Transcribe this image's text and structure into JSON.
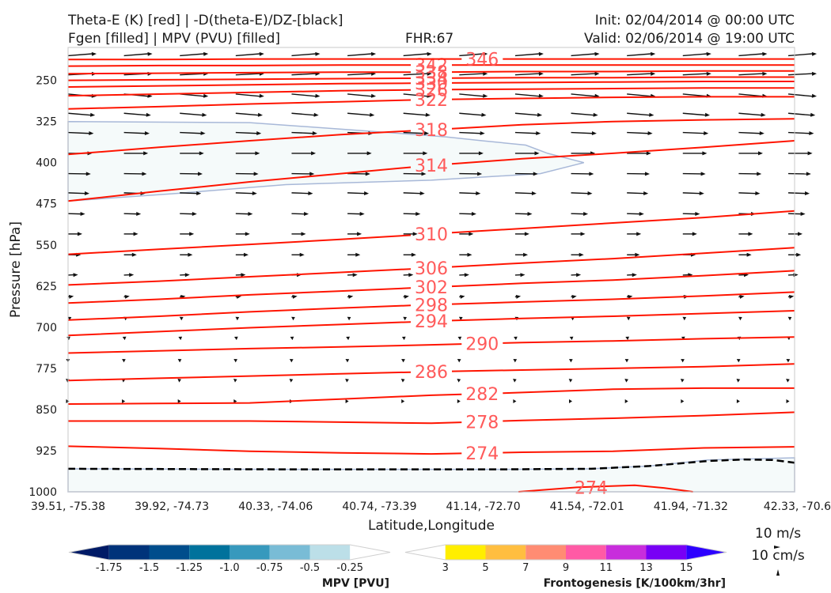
{
  "header": {
    "line1_left": "Theta-E (K) [red] | -D(theta-E)/DZ-[black]",
    "line2_left": "Fgen [filled] | MPV (PVU) [filled]",
    "fhr": "FHR:67",
    "init": "Init: 02/04/2014 @ 00:00 UTC",
    "valid": "Valid: 02/06/2014 @ 19:00 UTC"
  },
  "chart_data": {
    "type": "cross-section",
    "xlabel": "Latitude,Longitude",
    "ylabel": "Pressure [hPa]",
    "x_ticks": [
      "39.51, -75.38",
      "39.92, -74.73",
      "40.33, -74.06",
      "40.74, -73.39",
      "41.14, -72.70",
      "41.54, -72.01",
      "41.94, -71.32",
      "42.33, -70.6"
    ],
    "y_ticks": [
      "250",
      "325",
      "400",
      "475",
      "550",
      "625",
      "700",
      "775",
      "850",
      "925",
      "1000"
    ],
    "ylim": [
      1000,
      190
    ],
    "theta_e_contours": [
      {
        "label": "274",
        "y": [
          917,
          921,
          926,
          929,
          931,
          928,
          926,
          920,
          918
        ]
      },
      {
        "label": "278",
        "y": [
          871,
          871,
          871,
          873,
          875,
          870,
          866,
          861,
          855
        ]
      },
      {
        "label": "282",
        "y": [
          840,
          839,
          838,
          831,
          824,
          819,
          813,
          811,
          811
        ]
      },
      {
        "label": "286",
        "y": [
          797,
          793,
          789,
          785,
          781,
          778,
          775,
          772,
          767
        ]
      },
      {
        "label": "290",
        "y": [
          747,
          743,
          739,
          736,
          732,
          728,
          725,
          721,
          718
        ]
      },
      {
        "label": "294",
        "y": [
          715,
          708,
          701,
          695,
          689,
          684,
          680,
          675,
          670
        ]
      },
      {
        "label": "298",
        "y": [
          687,
          680,
          672,
          665,
          659,
          654,
          649,
          643,
          636
        ]
      },
      {
        "label": "302",
        "y": [
          656,
          649,
          641,
          634,
          627,
          620,
          614,
          606,
          597
        ]
      },
      {
        "label": "306",
        "y": [
          623,
          616,
          608,
          600,
          592,
          583,
          575,
          565,
          555
        ]
      },
      {
        "label": "310",
        "y": [
          567,
          558,
          549,
          540,
          530,
          520,
          510,
          500,
          488
        ]
      },
      {
        "label": "314",
        "y": [
          470,
          452,
          435,
          420,
          405,
          393,
          383,
          372,
          360
        ]
      },
      {
        "label": "318",
        "y": [
          385,
          372,
          360,
          349,
          340,
          331,
          325,
          322,
          320
        ]
      },
      {
        "label": "322",
        "y": [
          302,
          298,
          293,
          289,
          285,
          283,
          281,
          280,
          280
        ]
      },
      {
        "label": "326",
        "y": [
          278,
          275,
          272,
          269,
          267,
          266,
          265,
          264,
          264
        ]
      },
      {
        "label": "330",
        "y": [
          262,
          260,
          258,
          256,
          255,
          254,
          253,
          252,
          252
        ]
      },
      {
        "label": "334",
        "y": [
          250,
          249,
          248,
          247,
          246,
          245,
          245,
          244,
          244
        ]
      },
      {
        "label": "338",
        "y": [
          238,
          237,
          236,
          235,
          235,
          234,
          234,
          233,
          233
        ]
      },
      {
        "label": "342",
        "y": [
          224,
          223,
          223,
          222,
          222,
          222,
          222,
          222,
          222
        ]
      },
      {
        "label": "346",
        "y": [
          212,
          212,
          211,
          211,
          211,
          211,
          211,
          211,
          211
        ]
      }
    ],
    "lower_274_contour": {
      "label": "274",
      "x": [
        0.62,
        0.7,
        0.78,
        0.82,
        0.86
      ],
      "y": [
        1000,
        992,
        988,
        993,
        1000
      ]
    },
    "mpv_regions": [
      {
        "name": "upper",
        "level": "-0.25",
        "points": [
          [
            0.0,
            325
          ],
          [
            0.25,
            327
          ],
          [
            0.42,
            343
          ],
          [
            0.52,
            353
          ],
          [
            0.57,
            360
          ],
          [
            0.63,
            368
          ],
          [
            0.66,
            383
          ],
          [
            0.71,
            400
          ],
          [
            0.65,
            420
          ],
          [
            0.5,
            432
          ],
          [
            0.3,
            440
          ],
          [
            0.15,
            456
          ],
          [
            0.0,
            470
          ]
        ]
      },
      {
        "name": "surface",
        "level": "-0.25",
        "points": [
          [
            0.0,
            1000
          ],
          [
            0.0,
            958
          ],
          [
            0.3,
            959
          ],
          [
            0.6,
            959
          ],
          [
            0.72,
            958
          ],
          [
            0.8,
            953
          ],
          [
            0.88,
            942
          ],
          [
            1.0,
            938
          ],
          [
            1.0,
            1000
          ]
        ]
      }
    ],
    "dthetae_dz_zero": {
      "x": [
        0.0,
        0.3,
        0.6,
        0.72,
        0.8,
        0.88,
        0.93,
        0.97,
        1.0
      ],
      "y": [
        958,
        959,
        959,
        958,
        953,
        944,
        941,
        942,
        947
      ]
    },
    "wind_rows": [
      {
        "p": 205,
        "u": 1.0,
        "v": -0.06
      },
      {
        "p": 240,
        "u": 1.0,
        "v": -0.04
      },
      {
        "p": 275,
        "u": 1.0,
        "v": 0.07
      },
      {
        "p": 310,
        "u": 0.95,
        "v": 0.06
      },
      {
        "p": 345,
        "u": 0.9,
        "v": 0.03
      },
      {
        "p": 383,
        "u": 0.85,
        "v": 0.0
      },
      {
        "p": 420,
        "u": 0.8,
        "v": 0.01
      },
      {
        "p": 455,
        "u": 0.75,
        "v": 0.02
      },
      {
        "p": 493,
        "u": 0.6,
        "v": 0.01
      },
      {
        "p": 530,
        "u": 0.5,
        "v": 0.0
      },
      {
        "p": 568,
        "u": 0.45,
        "v": 0.0
      },
      {
        "p": 605,
        "u": 0.35,
        "v": -0.01
      },
      {
        "p": 645,
        "u": 0.2,
        "v": -0.03
      },
      {
        "p": 685,
        "u": 0.12,
        "v": -0.06
      },
      {
        "p": 720,
        "u": 0.08,
        "v": -0.05
      },
      {
        "p": 760,
        "u": 0.06,
        "v": -0.03
      },
      {
        "p": 796,
        "u": 0.05,
        "v": -0.02
      },
      {
        "p": 835,
        "u": 0.04,
        "v": 0.0
      }
    ]
  },
  "colorbar_mpv": {
    "title": "MPV [PVU]",
    "ticks": [
      "-1.75",
      "-1.5",
      "-1.25",
      "-1.0",
      "-0.75",
      "-0.5",
      "-0.25"
    ],
    "colors": [
      "#001a66",
      "#00337a",
      "#004d8c",
      "#00729c",
      "#3799bd",
      "#79bcd6",
      "#bcdfe8",
      "#ffffff"
    ]
  },
  "colorbar_fgen": {
    "title": "Frontogenesis [K/100km/3hr]",
    "ticks": [
      "3",
      "5",
      "7",
      "9",
      "11",
      "13",
      "15"
    ],
    "colors": [
      "#ffffff",
      "#ffee00",
      "#ffbe40",
      "#ff8c73",
      "#ff5aa5",
      "#c82ddc",
      "#7800f5",
      "#2d00ff"
    ]
  },
  "reference": {
    "horizontal": "10 m/s",
    "vertical": "10 cm/s"
  },
  "colors": {
    "theta_e": "#ff1400",
    "theta_e_label": "#ff5a5a",
    "mpv_fill": "#f5fafa",
    "mpv_edge": "#a8b8d8",
    "arrows": "#111111"
  }
}
